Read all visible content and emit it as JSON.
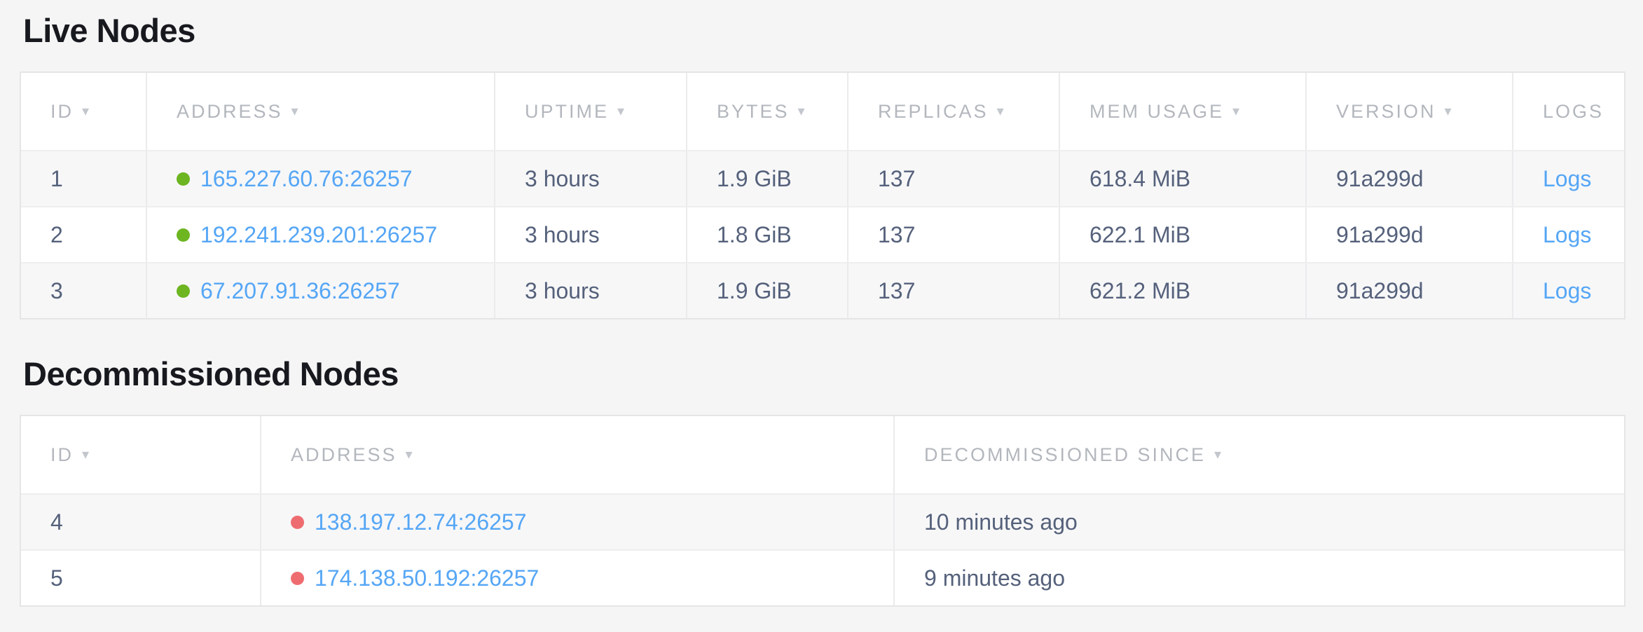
{
  "colors": {
    "page_bg": "#f5f5f6",
    "title_text": "#17191e",
    "header_text": "#b3b7bd",
    "cell_text": "#55617b",
    "link": "#55a6f5",
    "live_dot": "#6db521",
    "decommissioned_dot": "#ee6c70"
  },
  "icons": {
    "sort_arrow": "▾"
  },
  "live_nodes": {
    "title": "Live Nodes",
    "columns": [
      {
        "label": "ID",
        "sortable": true
      },
      {
        "label": "ADDRESS",
        "sortable": true
      },
      {
        "label": "UPTIME",
        "sortable": true
      },
      {
        "label": "BYTES",
        "sortable": true
      },
      {
        "label": "REPLICAS",
        "sortable": true
      },
      {
        "label": "MEM USAGE",
        "sortable": true
      },
      {
        "label": "VERSION",
        "sortable": true
      },
      {
        "label": "LOGS",
        "sortable": false
      }
    ],
    "rows": [
      {
        "id": "1",
        "status": "live",
        "address": "165.227.60.76:26257",
        "uptime": "3 hours",
        "bytes": "1.9 GiB",
        "replicas": "137",
        "mem_usage": "618.4 MiB",
        "version": "91a299d",
        "logs_label": "Logs"
      },
      {
        "id": "2",
        "status": "live",
        "address": "192.241.239.201:26257",
        "uptime": "3 hours",
        "bytes": "1.8 GiB",
        "replicas": "137",
        "mem_usage": "622.1 MiB",
        "version": "91a299d",
        "logs_label": "Logs"
      },
      {
        "id": "3",
        "status": "live",
        "address": "67.207.91.36:26257",
        "uptime": "3 hours",
        "bytes": "1.9 GiB",
        "replicas": "137",
        "mem_usage": "621.2 MiB",
        "version": "91a299d",
        "logs_label": "Logs"
      }
    ]
  },
  "decommissioned_nodes": {
    "title": "Decommissioned Nodes",
    "columns": [
      {
        "label": "ID",
        "sortable": true
      },
      {
        "label": "ADDRESS",
        "sortable": true
      },
      {
        "label": "DECOMMISSIONED SINCE",
        "sortable": true
      }
    ],
    "rows": [
      {
        "id": "4",
        "status": "decommissioned",
        "address": "138.197.12.74:26257",
        "decommissioned_since": "10 minutes ago"
      },
      {
        "id": "5",
        "status": "decommissioned",
        "address": "174.138.50.192:26257",
        "decommissioned_since": "9 minutes ago"
      }
    ]
  }
}
